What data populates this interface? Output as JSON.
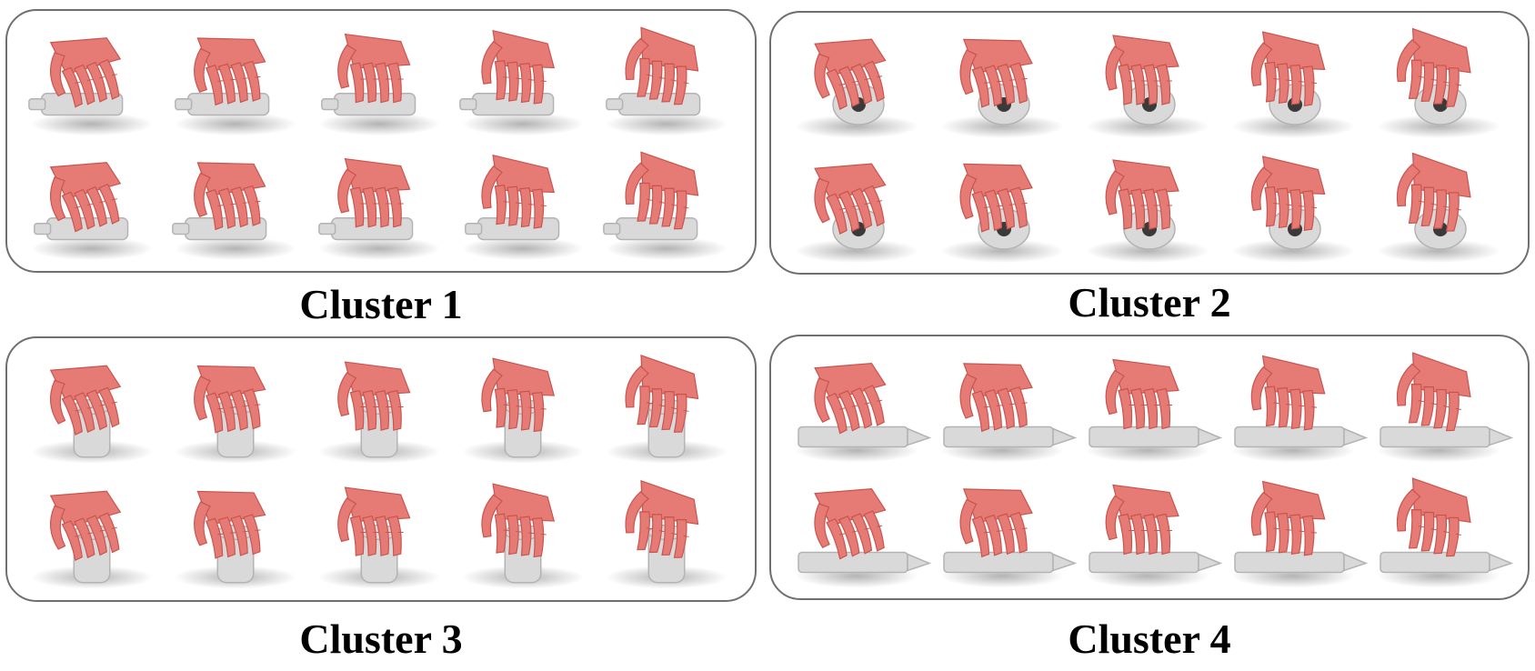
{
  "figure": {
    "panels": [
      {
        "caption": "Cluster 1",
        "object_style": "bottle"
      },
      {
        "caption": "Cluster 2",
        "object_style": "cup"
      },
      {
        "caption": "Cluster 3",
        "object_style": "cylinder"
      },
      {
        "caption": "Cluster 4",
        "object_style": "long"
      }
    ],
    "grasps_per_panel": 10,
    "colors": {
      "hand": "#e57b74",
      "hand_shade": "#c9544f",
      "object": "#d9d9d9",
      "object_shade": "#b3b3b3",
      "shadow": "#9a9a9a",
      "border": "#6f6f6f"
    }
  }
}
